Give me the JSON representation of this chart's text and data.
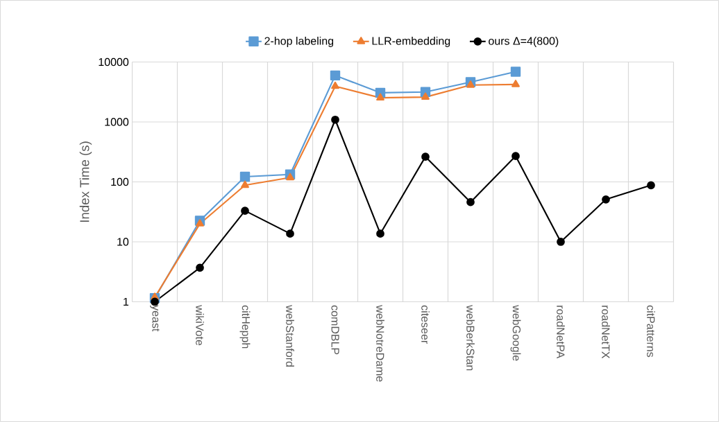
{
  "chart_data": {
    "type": "line",
    "ylabel": "Index Time (s)",
    "categories": [
      "yeast",
      "wikiVote",
      "citHepph",
      "webStanford",
      "comDBLP",
      "webNotreDame",
      "citeseer",
      "webBerkStan",
      "webGoogle",
      "roadNetPA",
      "roadNetTX",
      "citPatterns"
    ],
    "series": [
      {
        "name": "2-hop labeling",
        "color": "#5b9bd5",
        "marker": "square",
        "values": [
          1.15,
          22.5,
          122,
          133,
          5970,
          3070,
          3160,
          4620,
          6890,
          null,
          null,
          null
        ]
      },
      {
        "name": "LLR-embedding",
        "color": "#ed7d31",
        "marker": "triangle",
        "values": [
          1.19,
          20,
          88,
          118,
          3940,
          2530,
          2600,
          4120,
          4230,
          null,
          null,
          null
        ]
      },
      {
        "name": "ours Δ=4(800)",
        "color": "#000000",
        "marker": "circle",
        "values": [
          1,
          3.7,
          33,
          13.7,
          1090,
          13.7,
          263,
          46,
          270,
          10,
          51,
          88
        ]
      }
    ],
    "log": true,
    "ylim": [
      1,
      10000
    ],
    "yticks": [
      1,
      10,
      100,
      1000,
      10000
    ],
    "grid": true,
    "legend": "top"
  }
}
